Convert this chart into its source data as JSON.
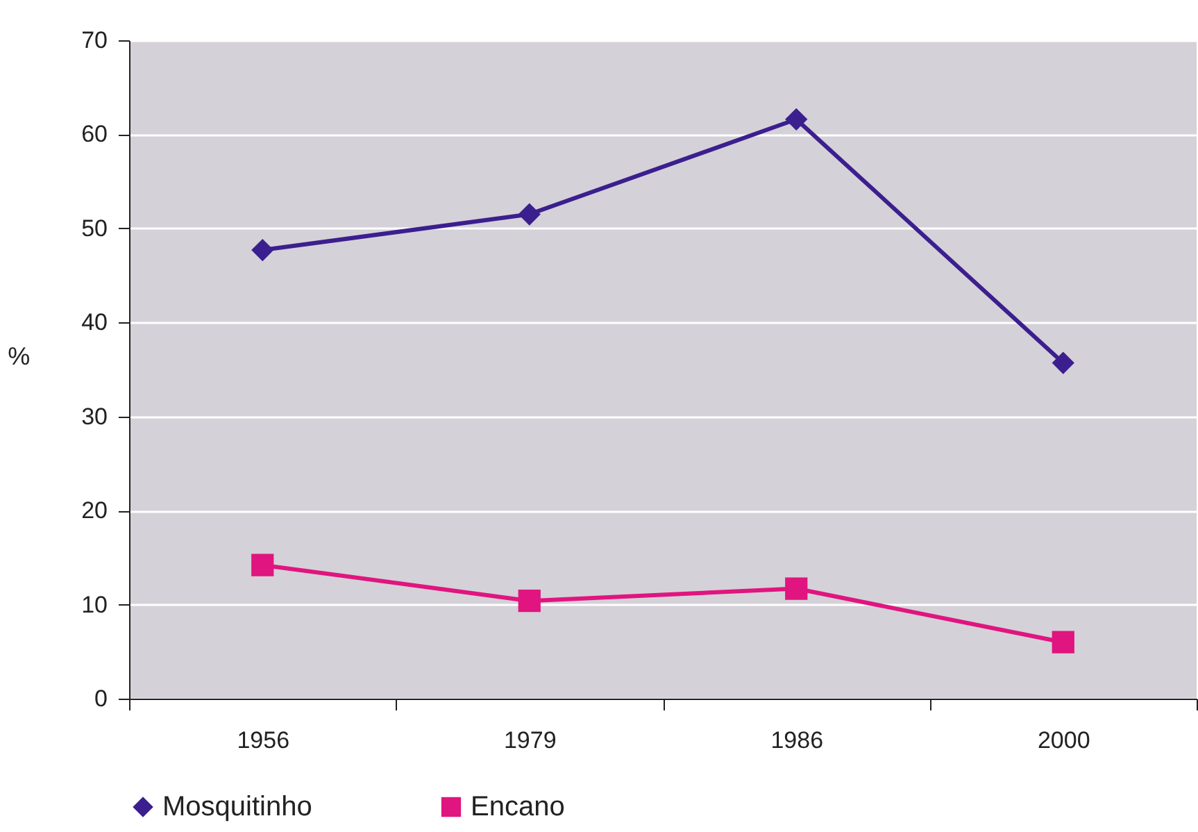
{
  "chart_data": {
    "type": "line",
    "ylabel": "%",
    "categories": [
      "1956",
      "1979",
      "1986",
      "2000"
    ],
    "series": [
      {
        "name": "Mosquitinho",
        "color": "#3b1f8e",
        "marker": "diamond",
        "values": [
          47.7,
          51.5,
          61.6,
          35.7
        ]
      },
      {
        "name": "Encano",
        "color": "#e0157f",
        "marker": "square",
        "values": [
          14.2,
          10.4,
          11.7,
          6.0
        ]
      }
    ],
    "ylim": [
      0,
      70
    ],
    "yticks": [
      0,
      10,
      20,
      30,
      40,
      50,
      60,
      70
    ],
    "grid": "y",
    "legend": "bottom"
  }
}
